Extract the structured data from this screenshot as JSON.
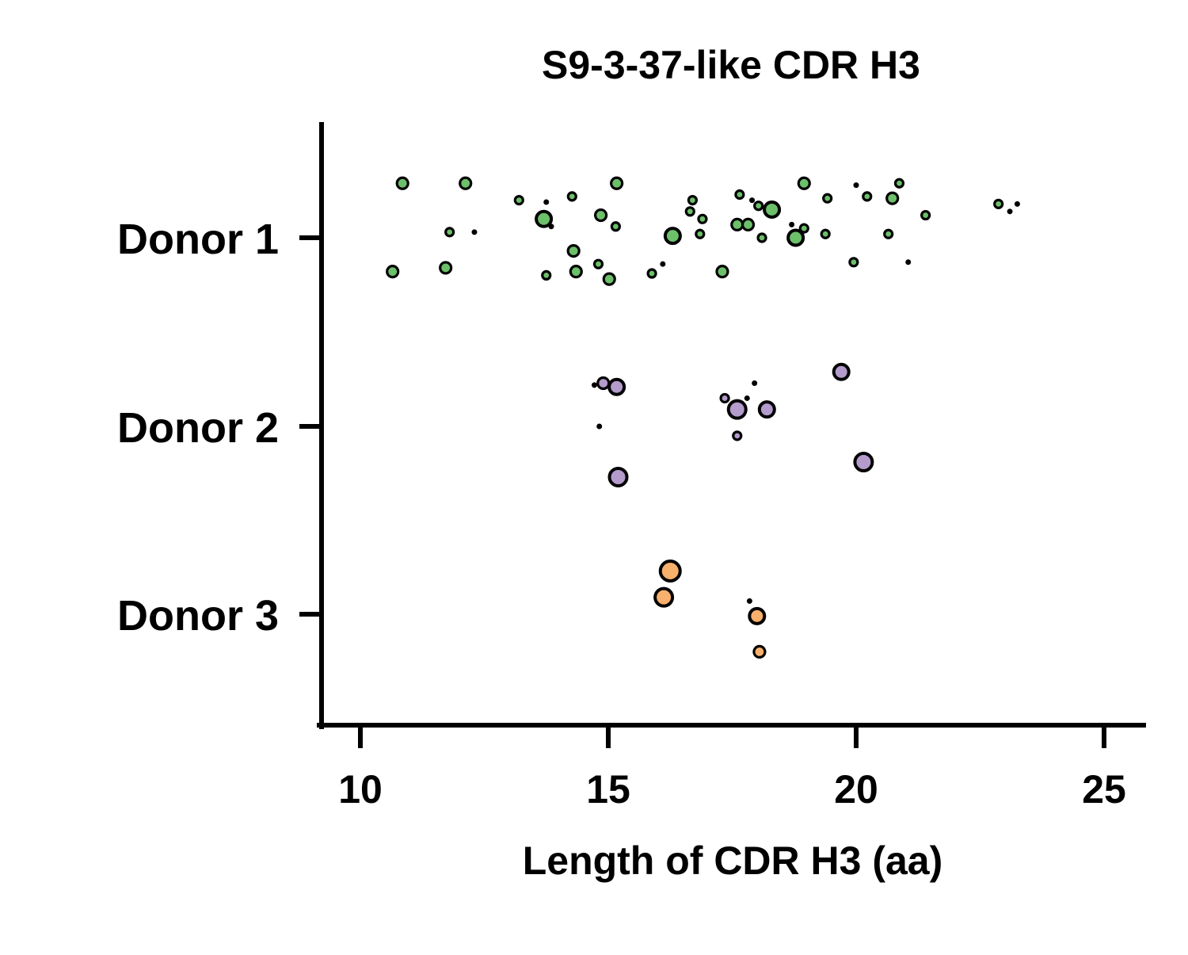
{
  "chart_data": {
    "type": "scatter",
    "title": "S9-3-37-like CDR H3",
    "xlabel": "Length of CDR H3 (aa)",
    "ylabel": "",
    "xlim": [
      9.25,
      25.8
    ],
    "x_ticks": [
      "10",
      "15",
      "20",
      "25"
    ],
    "x_tick_values": [
      10,
      15,
      20,
      25
    ],
    "categories": [
      "Donor 1",
      "Donor 2",
      "Donor 3"
    ],
    "grid": false,
    "marker_edge_color": "#000000",
    "series": [
      {
        "category": "Donor 1",
        "color": "#6cc06a",
        "points": [
          {
            "x": 10.85,
            "jitter": 0.29,
            "size": 2
          },
          {
            "x": 12.12,
            "jitter": 0.29,
            "size": 2
          },
          {
            "x": 15.17,
            "jitter": 0.29,
            "size": 2
          },
          {
            "x": 18.95,
            "jitter": 0.29,
            "size": 2
          },
          {
            "x": 20.0,
            "jitter": 0.28,
            "size": 0
          },
          {
            "x": 20.87,
            "jitter": 0.29,
            "size": 1
          },
          {
            "x": 13.2,
            "jitter": 0.2,
            "size": 1
          },
          {
            "x": 13.75,
            "jitter": 0.19,
            "size": 0
          },
          {
            "x": 14.27,
            "jitter": 0.22,
            "size": 1
          },
          {
            "x": 16.7,
            "jitter": 0.2,
            "size": 1
          },
          {
            "x": 17.65,
            "jitter": 0.23,
            "size": 1
          },
          {
            "x": 17.9,
            "jitter": 0.2,
            "size": 0
          },
          {
            "x": 18.03,
            "jitter": 0.17,
            "size": 1
          },
          {
            "x": 19.42,
            "jitter": 0.21,
            "size": 1
          },
          {
            "x": 20.22,
            "jitter": 0.22,
            "size": 1
          },
          {
            "x": 20.73,
            "jitter": 0.21,
            "size": 2
          },
          {
            "x": 22.87,
            "jitter": 0.18,
            "size": 1
          },
          {
            "x": 23.25,
            "jitter": 0.18,
            "size": 0
          },
          {
            "x": 23.1,
            "jitter": 0.14,
            "size": 0
          },
          {
            "x": 16.65,
            "jitter": 0.14,
            "size": 1
          },
          {
            "x": 16.9,
            "jitter": 0.1,
            "size": 1
          },
          {
            "x": 18.3,
            "jitter": 0.15,
            "size": 3
          },
          {
            "x": 14.85,
            "jitter": 0.12,
            "size": 2
          },
          {
            "x": 13.7,
            "jitter": 0.1,
            "size": 3
          },
          {
            "x": 13.85,
            "jitter": 0.06,
            "size": 0
          },
          {
            "x": 15.15,
            "jitter": 0.06,
            "size": 1
          },
          {
            "x": 17.6,
            "jitter": 0.07,
            "size": 2
          },
          {
            "x": 17.82,
            "jitter": 0.07,
            "size": 2
          },
          {
            "x": 18.7,
            "jitter": 0.07,
            "size": 0
          },
          {
            "x": 18.95,
            "jitter": 0.05,
            "size": 1
          },
          {
            "x": 21.4,
            "jitter": 0.12,
            "size": 1
          },
          {
            "x": 11.8,
            "jitter": 0.03,
            "size": 1
          },
          {
            "x": 12.3,
            "jitter": 0.03,
            "size": 0
          },
          {
            "x": 16.3,
            "jitter": 0.01,
            "size": 3
          },
          {
            "x": 16.85,
            "jitter": 0.02,
            "size": 1
          },
          {
            "x": 18.1,
            "jitter": 0.0,
            "size": 1
          },
          {
            "x": 18.78,
            "jitter": 0.0,
            "size": 3
          },
          {
            "x": 19.38,
            "jitter": 0.02,
            "size": 1
          },
          {
            "x": 20.65,
            "jitter": 0.02,
            "size": 1
          },
          {
            "x": 14.3,
            "jitter": -0.07,
            "size": 2
          },
          {
            "x": 14.8,
            "jitter": -0.14,
            "size": 1
          },
          {
            "x": 16.1,
            "jitter": -0.14,
            "size": 0
          },
          {
            "x": 19.95,
            "jitter": -0.13,
            "size": 1
          },
          {
            "x": 21.05,
            "jitter": -0.13,
            "size": 0
          },
          {
            "x": 10.65,
            "jitter": -0.18,
            "size": 2
          },
          {
            "x": 11.72,
            "jitter": -0.16,
            "size": 2
          },
          {
            "x": 13.75,
            "jitter": -0.2,
            "size": 1
          },
          {
            "x": 14.35,
            "jitter": -0.18,
            "size": 2
          },
          {
            "x": 15.02,
            "jitter": -0.22,
            "size": 2
          },
          {
            "x": 15.88,
            "jitter": -0.19,
            "size": 1
          },
          {
            "x": 17.3,
            "jitter": -0.18,
            "size": 2
          }
        ]
      },
      {
        "category": "Donor 2",
        "color": "#b39bcb",
        "points": [
          {
            "x": 19.7,
            "jitter": 0.29,
            "size": 3
          },
          {
            "x": 14.72,
            "jitter": 0.22,
            "size": 0
          },
          {
            "x": 14.9,
            "jitter": 0.23,
            "size": 2
          },
          {
            "x": 15.17,
            "jitter": 0.21,
            "size": 3
          },
          {
            "x": 17.95,
            "jitter": 0.23,
            "size": 0
          },
          {
            "x": 17.35,
            "jitter": 0.15,
            "size": 1
          },
          {
            "x": 17.8,
            "jitter": 0.15,
            "size": 0
          },
          {
            "x": 17.6,
            "jitter": 0.09,
            "size": 4
          },
          {
            "x": 18.2,
            "jitter": 0.09,
            "size": 3
          },
          {
            "x": 14.82,
            "jitter": 0.0,
            "size": 0
          },
          {
            "x": 17.6,
            "jitter": -0.05,
            "size": 1
          },
          {
            "x": 20.15,
            "jitter": -0.19,
            "size": 4
          },
          {
            "x": 15.2,
            "jitter": -0.27,
            "size": 4
          }
        ]
      },
      {
        "category": "Donor 3",
        "color": "#f8b06d",
        "points": [
          {
            "x": 16.25,
            "jitter": 0.23,
            "size": 5
          },
          {
            "x": 16.12,
            "jitter": 0.09,
            "size": 4
          },
          {
            "x": 17.85,
            "jitter": 0.07,
            "size": 0
          },
          {
            "x": 18.0,
            "jitter": -0.01,
            "size": 3
          },
          {
            "x": 18.05,
            "jitter": -0.2,
            "size": 2
          }
        ]
      }
    ]
  }
}
